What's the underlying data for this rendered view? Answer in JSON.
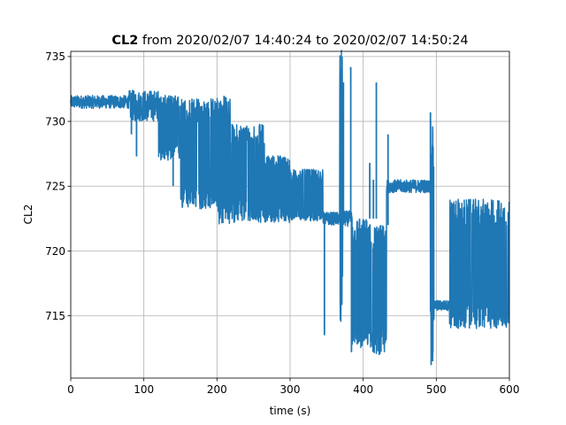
{
  "chart_data": {
    "type": "line",
    "title_bold": "CL2",
    "title_rest": " from 2020/02/07 14:40:24 to 2020/02/07 14:50:24",
    "xlabel": "time (s)",
    "ylabel": "CL2",
    "xlim": [
      0,
      600
    ],
    "ylim": [
      710.2,
      735.4
    ],
    "xticks": [
      0,
      100,
      200,
      300,
      400,
      500,
      600
    ],
    "yticks": [
      715,
      720,
      725,
      730,
      735
    ],
    "grid": true,
    "series_color": "#1f77b4",
    "segments": [
      {
        "x": [
          0,
          80
        ],
        "center": 731.5,
        "amp": 0.5
      },
      {
        "x": [
          80,
          120
        ],
        "center": 731.2,
        "amp": 1.2
      },
      {
        "x": [
          120,
          150
        ],
        "center": 729.5,
        "amp": 2.5
      },
      {
        "x": [
          150,
          200
        ],
        "center": 727.5,
        "amp": 4.3
      },
      {
        "x": [
          200,
          220
        ],
        "center": 727.0,
        "amp": 5.0
      },
      {
        "x": [
          220,
          265
        ],
        "center": 726.0,
        "amp": 3.8
      },
      {
        "x": [
          265,
          300
        ],
        "center": 724.8,
        "amp": 2.6
      },
      {
        "x": [
          300,
          345
        ],
        "center": 724.3,
        "amp": 2.0
      },
      {
        "x": [
          345,
          368
        ],
        "center": 722.5,
        "amp": 0.5
      },
      {
        "x": [
          368,
          372
        ],
        "center": 725.0,
        "amp": 10.5
      },
      {
        "x": [
          372,
          385
        ],
        "center": 722.5,
        "amp": 0.6
      },
      {
        "x": [
          385,
          412
        ],
        "center": 717.5,
        "amp": 5.0
      },
      {
        "x": [
          412,
          432
        ],
        "center": 717.0,
        "amp": 5.0
      },
      {
        "x": [
          432,
          492
        ],
        "center": 725.0,
        "amp": 0.5
      },
      {
        "x": [
          492,
          497
        ],
        "center": 721.0,
        "amp": 9.0
      },
      {
        "x": [
          497,
          518
        ],
        "center": 715.8,
        "amp": 0.4
      },
      {
        "x": [
          518,
          600
        ],
        "center": 719.0,
        "amp": 5.0
      }
    ],
    "spikes": [
      {
        "x": 83,
        "y0": 731.0,
        "y1": 729.0
      },
      {
        "x": 90,
        "y0": 730.5,
        "y1": 727.3
      },
      {
        "x": 140,
        "y0": 731.0,
        "y1": 725.0
      },
      {
        "x": 347,
        "y0": 722.5,
        "y1": 713.5
      },
      {
        "x": 370,
        "y0": 722.5,
        "y1": 734.0
      },
      {
        "x": 373,
        "y0": 722.5,
        "y1": 733.0
      },
      {
        "x": 383,
        "y0": 722.5,
        "y1": 734.2
      },
      {
        "x": 384,
        "y0": 722.5,
        "y1": 712.2
      },
      {
        "x": 395,
        "y0": 722.5,
        "y1": 713.0
      },
      {
        "x": 409,
        "y0": 722.5,
        "y1": 726.8
      },
      {
        "x": 414,
        "y0": 722.5,
        "y1": 725.5
      },
      {
        "x": 418,
        "y0": 722.5,
        "y1": 733.0
      },
      {
        "x": 424,
        "y0": 722.0,
        "y1": 712.3
      },
      {
        "x": 434,
        "y0": 722.0,
        "y1": 729.0
      },
      {
        "x": 492,
        "y0": 725.0,
        "y1": 730.7
      },
      {
        "x": 493,
        "y0": 725.0,
        "y1": 711.2
      },
      {
        "x": 495,
        "y0": 716.0,
        "y1": 711.5
      },
      {
        "x": 530,
        "y0": 716.0,
        "y1": 714.0
      }
    ]
  }
}
